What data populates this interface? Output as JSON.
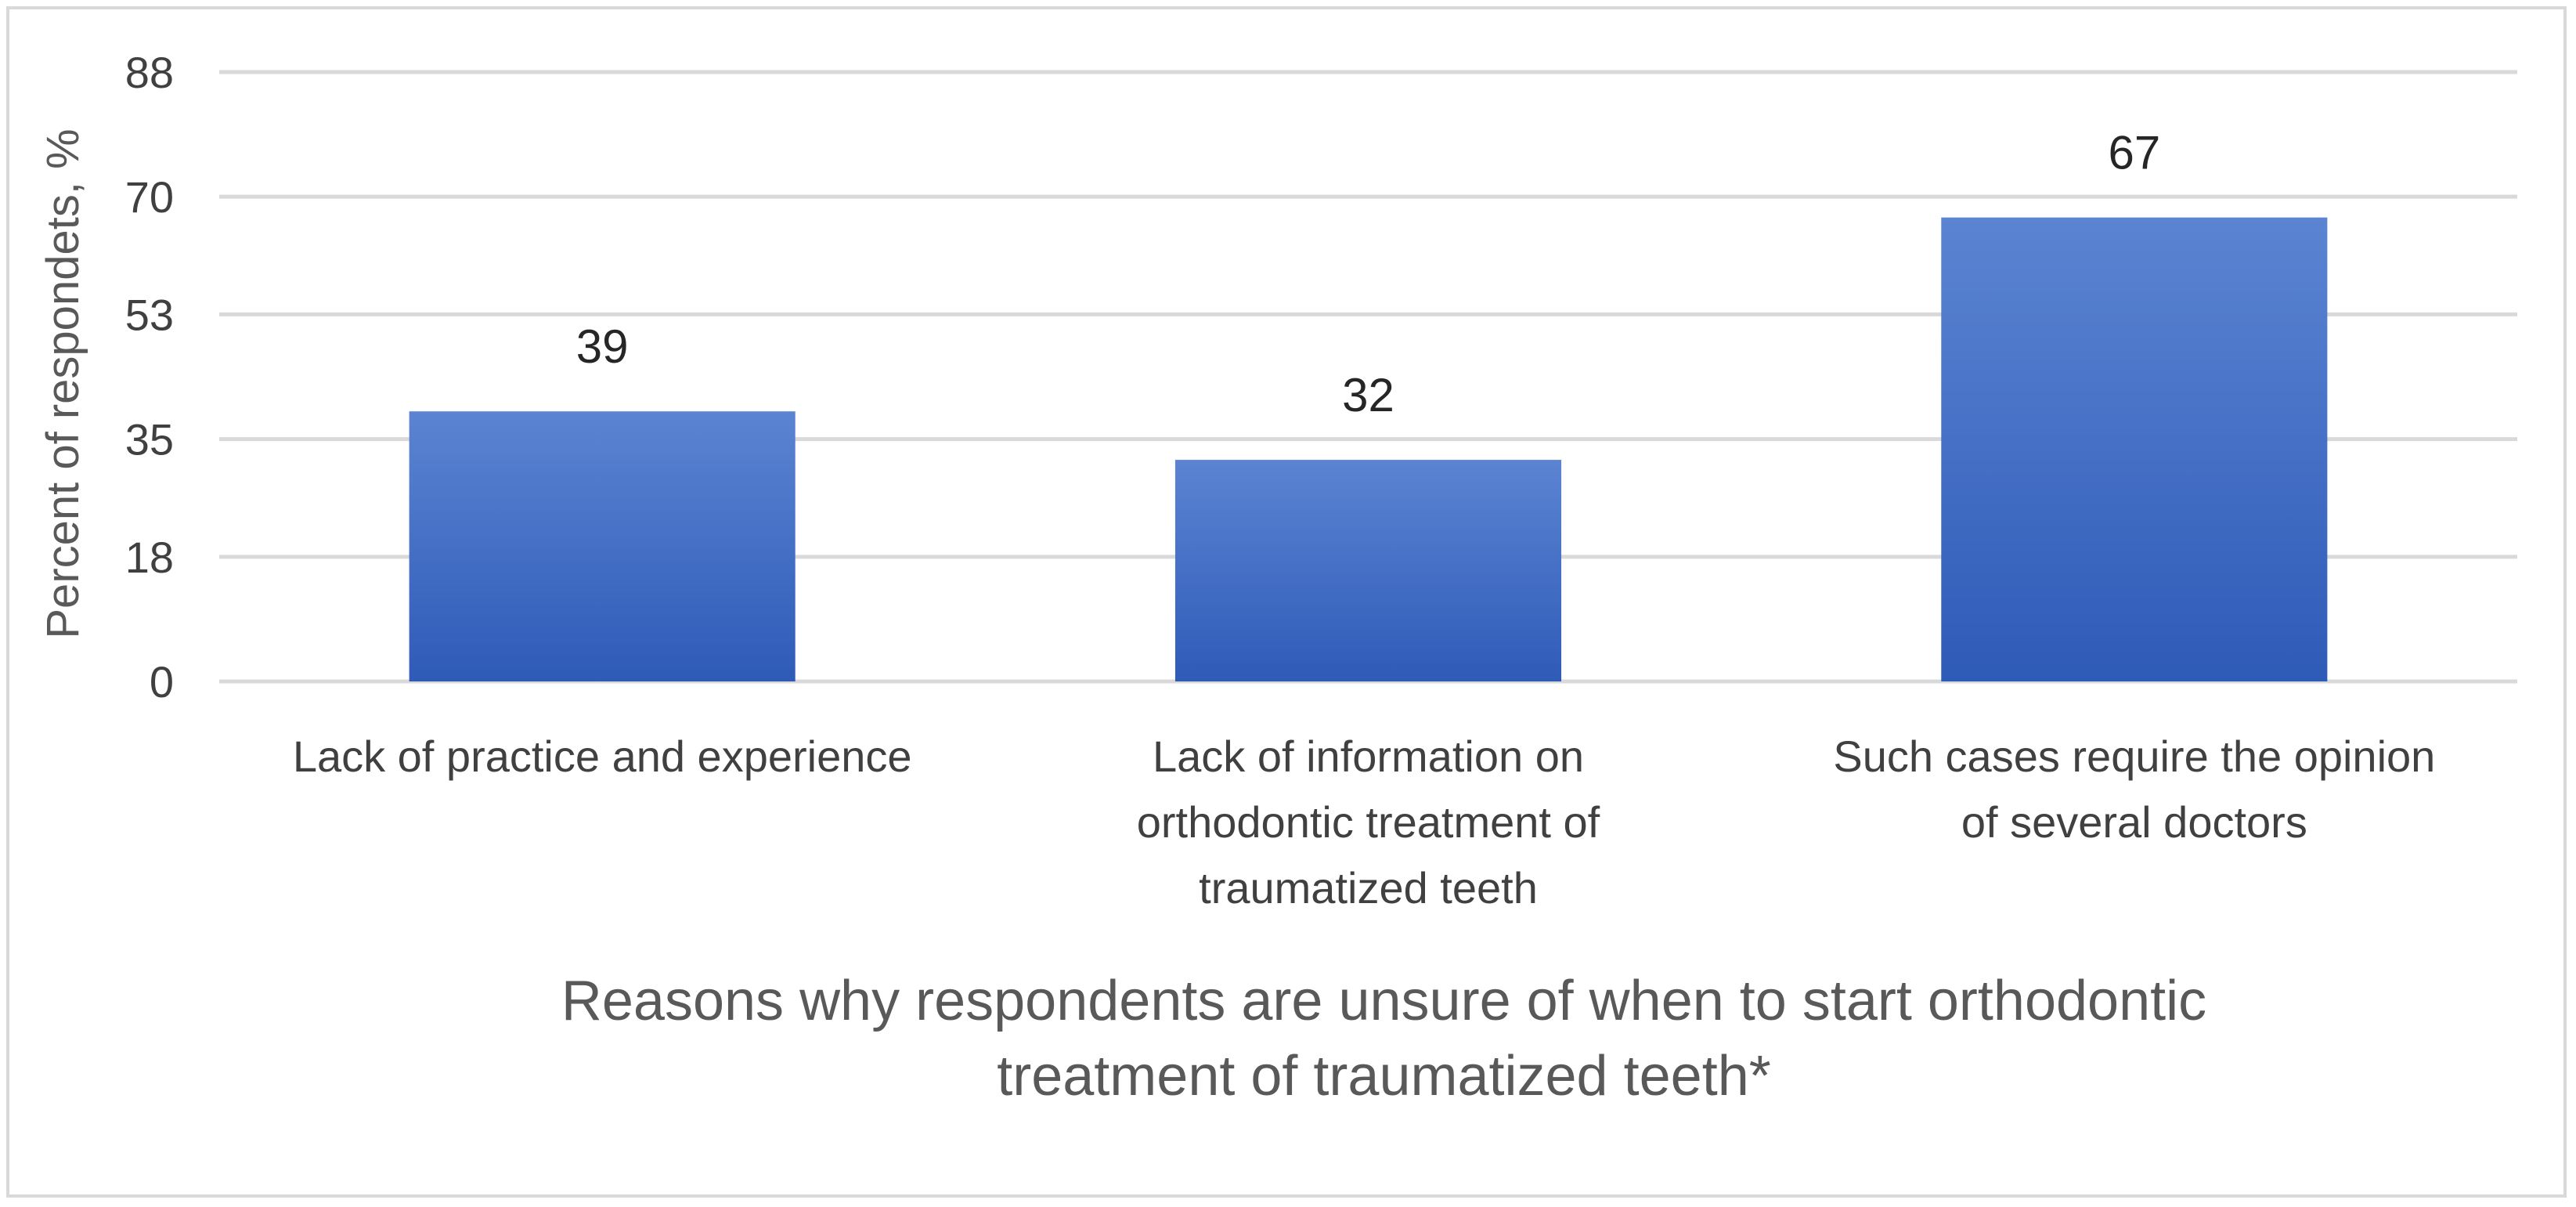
{
  "chart_data": {
    "type": "bar",
    "categories": [
      [
        "Lack of practice and experience"
      ],
      [
        "Lack of information on",
        "orthodontic treatment of",
        "traumatized teeth"
      ],
      [
        "Such cases require the opinion",
        "of several doctors"
      ]
    ],
    "values": [
      39,
      32,
      67
    ],
    "data_labels": [
      "39",
      "32",
      "67"
    ],
    "ylabel": "Percent of respondets, %",
    "xlabel": [
      "Reasons why respondents are unsure of when to start orthodontic",
      "treatment of traumatized teeth*"
    ],
    "ylim": [
      0,
      88
    ],
    "yticks": [
      0,
      18,
      35,
      53,
      70,
      88
    ],
    "grid": true,
    "legend": "none",
    "colors": {
      "bar_top": "#5b84d2",
      "bar_bottom": "#2f5bb8",
      "grid": "#d9d9d9"
    }
  }
}
